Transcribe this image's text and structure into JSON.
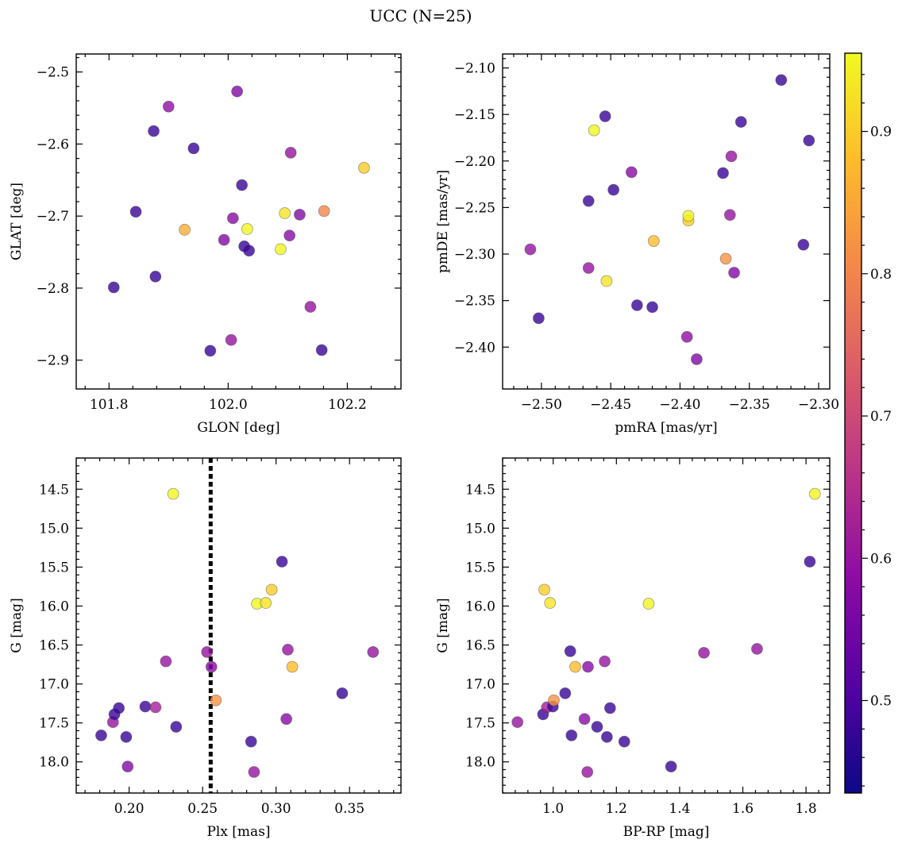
{
  "title": "UCC (N=25)",
  "colors": {
    "colormap": [
      "#0d0887",
      "#5402a3",
      "#8b0aa5",
      "#b93289",
      "#db5c68",
      "#f48849",
      "#febc2a",
      "#f0f921"
    ],
    "marker_alpha": 0.8,
    "marker_edge": "#444444",
    "vline": "#000000"
  },
  "colorbar": {
    "range": [
      0.435,
      0.955
    ],
    "ticks": [
      {
        "value": 0.5,
        "label": "0.5"
      },
      {
        "value": 0.6,
        "label": "0.6"
      },
      {
        "value": 0.7,
        "label": "0.7"
      },
      {
        "value": 0.8,
        "label": "0.8"
      },
      {
        "value": 0.9,
        "label": "0.9"
      }
    ]
  },
  "chart_data": [
    {
      "type": "scatter",
      "xlabel": "GLON [deg]",
      "ylabel": "GLAT [deg]",
      "xlim": [
        101.745,
        102.29
      ],
      "ylim": [
        -2.94,
        -2.475
      ],
      "xticks": [
        {
          "v": 101.8,
          "l": "101.8"
        },
        {
          "v": 102.0,
          "l": "102.0"
        },
        {
          "v": 102.2,
          "l": "102.2"
        }
      ],
      "yticks": [
        {
          "v": -2.5,
          "l": "−2.5"
        },
        {
          "v": -2.6,
          "l": "−2.6"
        },
        {
          "v": -2.7,
          "l": "−2.7"
        },
        {
          "v": -2.8,
          "l": "−2.8"
        },
        {
          "v": -2.9,
          "l": "−2.9"
        }
      ],
      "points": [
        {
          "x": 101.808,
          "y": -2.799,
          "c": 0.48
        },
        {
          "x": 101.845,
          "y": -2.694,
          "c": 0.48
        },
        {
          "x": 101.875,
          "y": -2.582,
          "c": 0.48
        },
        {
          "x": 101.878,
          "y": -2.784,
          "c": 0.48
        },
        {
          "x": 101.9,
          "y": -2.548,
          "c": 0.59
        },
        {
          "x": 101.927,
          "y": -2.719,
          "c": 0.86
        },
        {
          "x": 101.942,
          "y": -2.606,
          "c": 0.48
        },
        {
          "x": 101.97,
          "y": -2.887,
          "c": 0.48
        },
        {
          "x": 101.993,
          "y": -2.733,
          "c": 0.57
        },
        {
          "x": 102.005,
          "y": -2.872,
          "c": 0.6
        },
        {
          "x": 102.008,
          "y": -2.703,
          "c": 0.58
        },
        {
          "x": 102.015,
          "y": -2.527,
          "c": 0.57
        },
        {
          "x": 102.023,
          "y": -2.657,
          "c": 0.48
        },
        {
          "x": 102.027,
          "y": -2.742,
          "c": 0.48
        },
        {
          "x": 102.032,
          "y": -2.718,
          "c": 0.95
        },
        {
          "x": 102.035,
          "y": -2.748,
          "c": 0.48
        },
        {
          "x": 102.088,
          "y": -2.746,
          "c": 0.95
        },
        {
          "x": 102.095,
          "y": -2.696,
          "c": 0.93
        },
        {
          "x": 102.103,
          "y": -2.727,
          "c": 0.58
        },
        {
          "x": 102.105,
          "y": -2.612,
          "c": 0.6
        },
        {
          "x": 102.12,
          "y": -2.698,
          "c": 0.57
        },
        {
          "x": 102.138,
          "y": -2.826,
          "c": 0.6
        },
        {
          "x": 102.157,
          "y": -2.886,
          "c": 0.48
        },
        {
          "x": 102.161,
          "y": -2.693,
          "c": 0.8
        },
        {
          "x": 102.228,
          "y": -2.633,
          "c": 0.9
        }
      ]
    },
    {
      "type": "scatter",
      "xlabel": "pmRA [mas/yr]",
      "ylabel": "pmDE [mas/yr]",
      "xlim": [
        -2.528,
        -2.292
      ],
      "ylim": [
        -2.445,
        -2.085
      ],
      "xticks": [
        {
          "v": -2.5,
          "l": "−2.50"
        },
        {
          "v": -2.45,
          "l": "−2.45"
        },
        {
          "v": -2.4,
          "l": "−2.40"
        },
        {
          "v": -2.35,
          "l": "−2.35"
        },
        {
          "v": -2.3,
          "l": "−2.30"
        }
      ],
      "yticks": [
        {
          "v": -2.1,
          "l": "−2.10"
        },
        {
          "v": -2.15,
          "l": "−2.15"
        },
        {
          "v": -2.2,
          "l": "−2.20"
        },
        {
          "v": -2.25,
          "l": "−2.25"
        },
        {
          "v": -2.3,
          "l": "−2.30"
        },
        {
          "v": -2.35,
          "l": "−2.35"
        },
        {
          "v": -2.4,
          "l": "−2.40"
        }
      ],
      "points": [
        {
          "x": -2.508,
          "y": -2.295,
          "c": 0.6
        },
        {
          "x": -2.502,
          "y": -2.369,
          "c": 0.48
        },
        {
          "x": -2.466,
          "y": -2.243,
          "c": 0.48
        },
        {
          "x": -2.466,
          "y": -2.315,
          "c": 0.6
        },
        {
          "x": -2.462,
          "y": -2.167,
          "c": 0.95
        },
        {
          "x": -2.454,
          "y": -2.152,
          "c": 0.48
        },
        {
          "x": -2.453,
          "y": -2.329,
          "c": 0.93
        },
        {
          "x": -2.448,
          "y": -2.231,
          "c": 0.48
        },
        {
          "x": -2.435,
          "y": -2.212,
          "c": 0.58
        },
        {
          "x": -2.431,
          "y": -2.355,
          "c": 0.48
        },
        {
          "x": -2.42,
          "y": -2.357,
          "c": 0.48
        },
        {
          "x": -2.419,
          "y": -2.286,
          "c": 0.88
        },
        {
          "x": -2.394,
          "y": -2.264,
          "c": 0.9
        },
        {
          "x": -2.394,
          "y": -2.259,
          "c": 0.95
        },
        {
          "x": -2.395,
          "y": -2.389,
          "c": 0.59
        },
        {
          "x": -2.388,
          "y": -2.413,
          "c": 0.57
        },
        {
          "x": -2.369,
          "y": -2.213,
          "c": 0.48
        },
        {
          "x": -2.367,
          "y": -2.305,
          "c": 0.82
        },
        {
          "x": -2.364,
          "y": -2.258,
          "c": 0.6
        },
        {
          "x": -2.363,
          "y": -2.195,
          "c": 0.6
        },
        {
          "x": -2.361,
          "y": -2.32,
          "c": 0.57
        },
        {
          "x": -2.356,
          "y": -2.158,
          "c": 0.48
        },
        {
          "x": -2.327,
          "y": -2.113,
          "c": 0.48
        },
        {
          "x": -2.311,
          "y": -2.29,
          "c": 0.48
        },
        {
          "x": -2.307,
          "y": -2.178,
          "c": 0.48
        }
      ]
    },
    {
      "type": "scatter",
      "xlabel": "Plx [mas]",
      "ylabel": "G [mag]",
      "xlim": [
        0.164,
        0.385
      ],
      "ylim": [
        18.4,
        14.1
      ],
      "y_inverted": true,
      "xticks": [
        {
          "v": 0.2,
          "l": "0.20"
        },
        {
          "v": 0.25,
          "l": "0.25"
        },
        {
          "v": 0.3,
          "l": "0.30"
        },
        {
          "v": 0.35,
          "l": "0.35"
        }
      ],
      "yticks": [
        {
          "v": 14.5,
          "l": "14.5"
        },
        {
          "v": 15.0,
          "l": "15.0"
        },
        {
          "v": 15.5,
          "l": "15.5"
        },
        {
          "v": 16.0,
          "l": "16.0"
        },
        {
          "v": 16.5,
          "l": "16.5"
        },
        {
          "v": 17.0,
          "l": "17.0"
        },
        {
          "v": 17.5,
          "l": "17.5"
        },
        {
          "v": 18.0,
          "l": "18.0"
        }
      ],
      "vline": 0.2555,
      "points": [
        {
          "x": 0.181,
          "y": 17.66,
          "c": 0.48
        },
        {
          "x": 0.189,
          "y": 17.49,
          "c": 0.6
        },
        {
          "x": 0.19,
          "y": 17.39,
          "c": 0.48
        },
        {
          "x": 0.193,
          "y": 17.31,
          "c": 0.48
        },
        {
          "x": 0.198,
          "y": 17.68,
          "c": 0.48
        },
        {
          "x": 0.199,
          "y": 18.06,
          "c": 0.57
        },
        {
          "x": 0.211,
          "y": 17.29,
          "c": 0.48
        },
        {
          "x": 0.218,
          "y": 17.3,
          "c": 0.62
        },
        {
          "x": 0.225,
          "y": 16.71,
          "c": 0.6
        },
        {
          "x": 0.23,
          "y": 14.56,
          "c": 0.95
        },
        {
          "x": 0.232,
          "y": 17.55,
          "c": 0.48
        },
        {
          "x": 0.253,
          "y": 16.59,
          "c": 0.6
        },
        {
          "x": 0.256,
          "y": 16.78,
          "c": 0.58
        },
        {
          "x": 0.259,
          "y": 17.21,
          "c": 0.82
        },
        {
          "x": 0.283,
          "y": 17.74,
          "c": 0.48
        },
        {
          "x": 0.285,
          "y": 18.13,
          "c": 0.6
        },
        {
          "x": 0.287,
          "y": 15.97,
          "c": 0.95
        },
        {
          "x": 0.293,
          "y": 15.96,
          "c": 0.93
        },
        {
          "x": 0.297,
          "y": 15.79,
          "c": 0.9
        },
        {
          "x": 0.304,
          "y": 15.43,
          "c": 0.48
        },
        {
          "x": 0.307,
          "y": 17.45,
          "c": 0.58
        },
        {
          "x": 0.308,
          "y": 16.56,
          "c": 0.6
        },
        {
          "x": 0.311,
          "y": 16.78,
          "c": 0.88
        },
        {
          "x": 0.345,
          "y": 17.12,
          "c": 0.48
        },
        {
          "x": 0.366,
          "y": 16.59,
          "c": 0.6
        }
      ]
    },
    {
      "type": "scatter",
      "xlabel": "BP-RP [mag]",
      "ylabel": "G [mag]",
      "xlim": [
        0.84,
        1.875
      ],
      "ylim": [
        18.4,
        14.1
      ],
      "y_inverted": true,
      "xticks": [
        {
          "v": 1.0,
          "l": "1.0"
        },
        {
          "v": 1.2,
          "l": "1.2"
        },
        {
          "v": 1.4,
          "l": "1.4"
        },
        {
          "v": 1.6,
          "l": "1.6"
        },
        {
          "v": 1.8,
          "l": "1.8"
        }
      ],
      "yticks": [
        {
          "v": 14.5,
          "l": "14.5"
        },
        {
          "v": 15.0,
          "l": "15.0"
        },
        {
          "v": 15.5,
          "l": "15.5"
        },
        {
          "v": 16.0,
          "l": "16.0"
        },
        {
          "v": 16.5,
          "l": "16.5"
        },
        {
          "v": 17.0,
          "l": "17.0"
        },
        {
          "v": 17.5,
          "l": "17.5"
        },
        {
          "v": 18.0,
          "l": "18.0"
        }
      ],
      "points": [
        {
          "x": 0.887,
          "y": 17.49,
          "c": 0.6
        },
        {
          "x": 0.968,
          "y": 17.39,
          "c": 0.48
        },
        {
          "x": 0.972,
          "y": 15.79,
          "c": 0.9
        },
        {
          "x": 0.98,
          "y": 17.3,
          "c": 0.62
        },
        {
          "x": 0.99,
          "y": 15.96,
          "c": 0.93
        },
        {
          "x": 0.999,
          "y": 17.29,
          "c": 0.48
        },
        {
          "x": 1.002,
          "y": 17.21,
          "c": 0.82
        },
        {
          "x": 1.038,
          "y": 17.12,
          "c": 0.48
        },
        {
          "x": 1.054,
          "y": 16.58,
          "c": 0.48
        },
        {
          "x": 1.058,
          "y": 17.66,
          "c": 0.48
        },
        {
          "x": 1.07,
          "y": 16.78,
          "c": 0.88
        },
        {
          "x": 1.099,
          "y": 17.45,
          "c": 0.58
        },
        {
          "x": 1.11,
          "y": 16.78,
          "c": 0.58
        },
        {
          "x": 1.108,
          "y": 18.13,
          "c": 0.6
        },
        {
          "x": 1.139,
          "y": 17.55,
          "c": 0.48
        },
        {
          "x": 1.163,
          "y": 16.71,
          "c": 0.6
        },
        {
          "x": 1.17,
          "y": 17.68,
          "c": 0.48
        },
        {
          "x": 1.18,
          "y": 17.31,
          "c": 0.48
        },
        {
          "x": 1.225,
          "y": 17.74,
          "c": 0.48
        },
        {
          "x": 1.302,
          "y": 15.97,
          "c": 0.95
        },
        {
          "x": 1.373,
          "y": 18.06,
          "c": 0.48
        },
        {
          "x": 1.477,
          "y": 16.6,
          "c": 0.6
        },
        {
          "x": 1.645,
          "y": 16.55,
          "c": 0.6
        },
        {
          "x": 1.812,
          "y": 15.43,
          "c": 0.48
        },
        {
          "x": 1.828,
          "y": 14.56,
          "c": 0.95
        }
      ]
    }
  ]
}
